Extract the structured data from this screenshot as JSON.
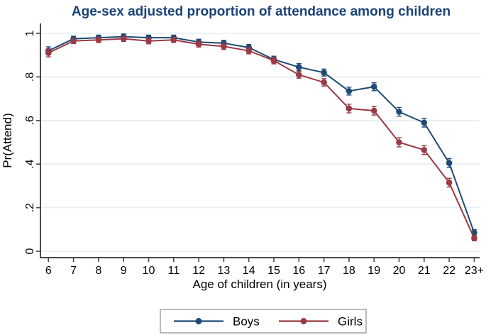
{
  "chart_data": {
    "type": "line",
    "title": "Age-sex adjusted proportion of attendance among children",
    "xlabel": "Age of children (in years)",
    "ylabel": "Pr(Attend)",
    "categories": [
      "6",
      "7",
      "8",
      "9",
      "10",
      "11",
      "12",
      "13",
      "14",
      "15",
      "16",
      "17",
      "18",
      "19",
      "20",
      "21",
      "22",
      "23+"
    ],
    "ylim": [
      0,
      1
    ],
    "ytick_labels": [
      "0",
      ".2",
      ".4",
      ".6",
      ".8",
      "1"
    ],
    "ytick_values": [
      0,
      0.2,
      0.4,
      0.6,
      0.8,
      1
    ],
    "grid": true,
    "legend_position": "bottom-center",
    "series": [
      {
        "name": "Boys",
        "color": "#1e4a75",
        "marker": "circle",
        "values": [
          0.92,
          0.975,
          0.98,
          0.985,
          0.98,
          0.98,
          0.96,
          0.955,
          0.935,
          0.88,
          0.845,
          0.82,
          0.735,
          0.755,
          0.64,
          0.59,
          0.405,
          0.085
        ],
        "errors": [
          0.018,
          0.012,
          0.012,
          0.012,
          0.012,
          0.012,
          0.013,
          0.013,
          0.014,
          0.015,
          0.016,
          0.016,
          0.018,
          0.018,
          0.02,
          0.02,
          0.02,
          0.014
        ]
      },
      {
        "name": "Girls",
        "color": "#9a3a44",
        "marker": "circle",
        "values": [
          0.91,
          0.965,
          0.97,
          0.975,
          0.965,
          0.97,
          0.95,
          0.94,
          0.92,
          0.875,
          0.81,
          0.775,
          0.655,
          0.645,
          0.5,
          0.465,
          0.315,
          0.06
        ],
        "errors": [
          0.018,
          0.012,
          0.012,
          0.012,
          0.013,
          0.012,
          0.013,
          0.014,
          0.014,
          0.015,
          0.016,
          0.017,
          0.02,
          0.02,
          0.021,
          0.021,
          0.02,
          0.012
        ]
      }
    ]
  },
  "legend": {
    "items": [
      "Boys",
      "Girls"
    ]
  },
  "colors": {
    "title": "#1a4378",
    "axis": "#4a4a4a",
    "grid": "#e3eef2",
    "tick_text": "#000000",
    "legend_border": "#8c8c8c",
    "background": "#ffffff"
  }
}
